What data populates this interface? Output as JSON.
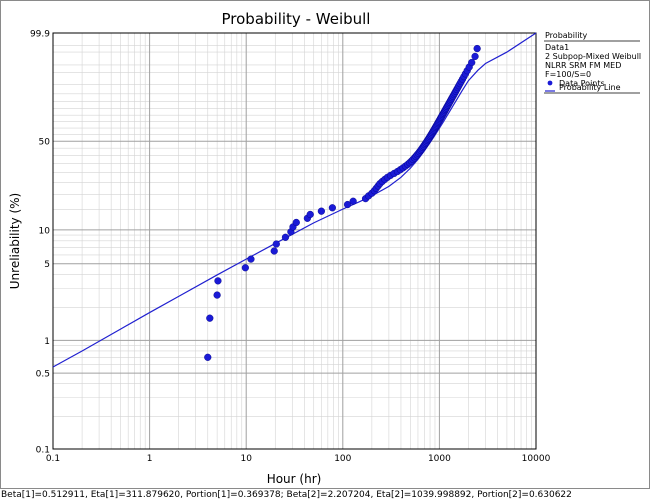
{
  "chart_data": {
    "type": "scatter",
    "title": "Probability - Weibull",
    "xlabel": "Hour (hr)",
    "ylabel": "Unreliability (%)",
    "x_scale": "log",
    "y_scale": "weibull",
    "xlim": [
      0.1,
      10000
    ],
    "ylim": [
      0.1,
      99.9
    ],
    "x_ticks": [
      "0.1",
      "1",
      "10",
      "100",
      "1000",
      "10000"
    ],
    "y_ticks": [
      {
        "value": 0.1,
        "label": "0.1"
      },
      {
        "value": 0.5,
        "label": "0.5"
      },
      {
        "value": 1,
        "label": "1"
      },
      {
        "value": 5,
        "label": "5"
      },
      {
        "value": 10,
        "label": "10"
      },
      {
        "value": 50,
        "label": "50"
      },
      {
        "value": 99.9,
        "label": "99.9"
      }
    ],
    "grid": true,
    "legend": {
      "position": "right",
      "title": "Probability",
      "info": [
        "Data1",
        "2 Subpop-Mixed Weibull",
        "NLRR SRM FM MED",
        "F=100/S=0"
      ],
      "entries": [
        {
          "label": "Data Points",
          "marker": "circle"
        },
        {
          "label": "Probability Line",
          "marker": "line"
        }
      ]
    },
    "colors": {
      "points": "#1a1ad6",
      "line": "#2020d0",
      "grid_major": "#a0a0a0",
      "grid_minor": "#d4d4d4"
    },
    "model": {
      "subpops": [
        {
          "beta": 0.512911,
          "eta": 311.87962,
          "portion": 0.369378
        },
        {
          "beta": 2.207204,
          "eta": 1039.998892,
          "portion": 0.630622
        }
      ]
    },
    "series": [
      {
        "name": "Data Points",
        "type": "scatter",
        "points": [
          [
            4.0,
            0.7
          ],
          [
            4.2,
            1.6
          ],
          [
            5.0,
            2.6
          ],
          [
            5.1,
            3.5
          ],
          [
            9.8,
            4.6
          ],
          [
            11.2,
            5.5
          ],
          [
            19.5,
            6.5
          ],
          [
            20.5,
            7.5
          ],
          [
            25.5,
            8.6
          ],
          [
            29,
            9.6
          ],
          [
            30.5,
            10.6
          ],
          [
            33,
            11.6
          ],
          [
            43,
            12.6
          ],
          [
            46,
            13.6
          ],
          [
            60,
            14.5
          ],
          [
            78,
            15.5
          ],
          [
            112,
            16.5
          ],
          [
            128,
            17.6
          ],
          [
            172,
            18.5
          ],
          [
            185,
            19.5
          ],
          [
            200,
            20.5
          ],
          [
            212,
            21.5
          ],
          [
            222,
            22.5
          ],
          [
            232,
            23.5
          ],
          [
            242,
            24.5
          ],
          [
            256,
            25.5
          ],
          [
            272,
            26.5
          ],
          [
            290,
            27.5
          ],
          [
            312,
            28.5
          ],
          [
            340,
            29.5
          ],
          [
            368,
            30.5
          ],
          [
            394,
            31.5
          ],
          [
            420,
            32.5
          ],
          [
            445,
            33.5
          ],
          [
            470,
            34.5
          ],
          [
            492,
            35.5
          ],
          [
            513,
            36.5
          ],
          [
            533,
            37.5
          ],
          [
            552,
            38.5
          ],
          [
            570,
            39.5
          ],
          [
            588,
            40.5
          ],
          [
            606,
            41.5
          ],
          [
            623,
            42.5
          ],
          [
            640,
            43.5
          ],
          [
            656,
            44.5
          ],
          [
            672,
            45.5
          ],
          [
            688,
            46.5
          ],
          [
            704,
            47.5
          ],
          [
            720,
            48.5
          ],
          [
            736,
            49.5
          ],
          [
            752,
            50.5
          ],
          [
            768,
            51.5
          ],
          [
            783,
            52.5
          ],
          [
            799,
            53.5
          ],
          [
            814,
            54.5
          ],
          [
            830,
            55.5
          ],
          [
            846,
            56.5
          ],
          [
            861,
            57.5
          ],
          [
            877,
            58.5
          ],
          [
            893,
            59.5
          ],
          [
            909,
            60.5
          ],
          [
            925,
            61.5
          ],
          [
            941,
            62.5
          ],
          [
            958,
            63.5
          ],
          [
            975,
            64.5
          ],
          [
            992,
            65.5
          ],
          [
            1009,
            66.5
          ],
          [
            1027,
            67.5
          ],
          [
            1045,
            68.5
          ],
          [
            1063,
            69.5
          ],
          [
            1082,
            70.5
          ],
          [
            1101,
            71.5
          ],
          [
            1121,
            72.5
          ],
          [
            1141,
            73.5
          ],
          [
            1162,
            74.5
          ],
          [
            1183,
            75.5
          ],
          [
            1205,
            76.5
          ],
          [
            1228,
            77.5
          ],
          [
            1251,
            78.5
          ],
          [
            1276,
            79.5
          ],
          [
            1301,
            80.5
          ],
          [
            1327,
            81.5
          ],
          [
            1354,
            82.5
          ],
          [
            1383,
            83.5
          ],
          [
            1413,
            84.5
          ],
          [
            1444,
            85.5
          ],
          [
            1477,
            86.5
          ],
          [
            1512,
            87.5
          ],
          [
            1550,
            88.5
          ],
          [
            1590,
            89.5
          ],
          [
            1634,
            90.5
          ],
          [
            1681,
            91.5
          ],
          [
            1734,
            92.5
          ],
          [
            1793,
            93.5
          ],
          [
            1860,
            94.5
          ],
          [
            1940,
            95.5
          ],
          [
            2036,
            96.5
          ],
          [
            2160,
            97.5
          ],
          [
            2340,
            98.5
          ],
          [
            2460,
            99.3
          ]
        ]
      },
      {
        "name": "Probability Line",
        "type": "line",
        "points": [
          [
            0.1,
            0.57
          ],
          [
            0.2,
            0.8
          ],
          [
            0.5,
            1.27
          ],
          [
            1,
            1.8
          ],
          [
            2,
            2.53
          ],
          [
            5,
            3.96
          ],
          [
            10,
            5.5
          ],
          [
            20,
            7.59
          ],
          [
            50,
            11.5
          ],
          [
            100,
            15.1
          ],
          [
            150,
            17.5
          ],
          [
            200,
            19.5
          ],
          [
            300,
            23.3
          ],
          [
            400,
            27.5
          ],
          [
            500,
            32.3
          ],
          [
            600,
            37.6
          ],
          [
            700,
            43.2
          ],
          [
            800,
            48.9
          ],
          [
            900,
            54.5
          ],
          [
            1000,
            59.9
          ],
          [
            1100,
            64.9
          ],
          [
            1200,
            69.6
          ],
          [
            1300,
            73.8
          ],
          [
            1400,
            77.6
          ],
          [
            1500,
            80.9
          ],
          [
            1700,
            86.4
          ],
          [
            2000,
            91.9
          ],
          [
            2500,
            95.6
          ],
          [
            3000,
            97.3
          ],
          [
            5000,
            99.0
          ],
          [
            10000,
            99.9
          ]
        ]
      }
    ]
  },
  "footer": {
    "text": "Beta[1]=0.512911, Eta[1]=311.879620, Portion[1]=0.369378; Beta[2]=2.207204, Eta[2]=1039.998892, Portion[2]=0.630622"
  }
}
